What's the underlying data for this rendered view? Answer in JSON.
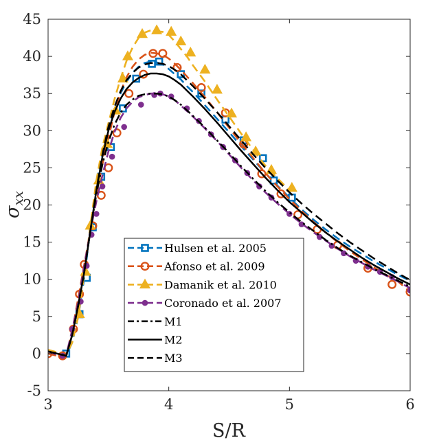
{
  "chart_data": {
    "type": "line",
    "title": "",
    "xlabel": "S/R",
    "ylabel": "σ",
    "ylabel_subscript": "xx",
    "xlim": [
      3,
      6
    ],
    "ylim": [
      -5,
      45
    ],
    "x_ticks": [
      3,
      4,
      5,
      6
    ],
    "y_ticks": [
      -5,
      0,
      5,
      10,
      15,
      20,
      25,
      30,
      35,
      40,
      45
    ],
    "grid": false,
    "legend_position": "bottom-center",
    "series": [
      {
        "name": "Hulsen et al. 2005",
        "color": "#0072BD",
        "marker": "square",
        "line_style": "dashed",
        "x": [
          3.0,
          3.05,
          3.1,
          3.15,
          3.2,
          3.25,
          3.3,
          3.35,
          3.4,
          3.45,
          3.5,
          3.55,
          3.6,
          3.65,
          3.7,
          3.75,
          3.8,
          3.85,
          3.9,
          3.95,
          4.0,
          4.05,
          4.1,
          4.15,
          4.2,
          4.3,
          4.4,
          4.5,
          4.6,
          4.7,
          4.8,
          4.9,
          5.0,
          5.1,
          5.2,
          5.3,
          5.4,
          5.5,
          5.6,
          5.7,
          5.8,
          5.9,
          6.0
        ],
        "y": [
          0.4,
          0.2,
          -0.1,
          -0.3,
          1.5,
          5.0,
          10.2,
          16.8,
          22.5,
          27.0,
          30.3,
          33.0,
          35.0,
          36.6,
          37.8,
          38.6,
          39.1,
          39.3,
          39.2,
          38.9,
          38.3,
          37.6,
          36.9,
          36.0,
          35.2,
          33.4,
          31.6,
          29.8,
          27.9,
          26.1,
          24.3,
          22.6,
          21.0,
          19.4,
          18.0,
          16.7,
          15.5,
          14.4,
          13.4,
          12.4,
          11.5,
          10.6,
          9.8
        ],
        "marker_x": [
          3.15,
          3.26,
          3.32,
          3.37,
          3.44,
          3.52,
          3.62,
          3.73,
          3.86,
          3.92,
          4.1,
          4.27,
          4.47,
          4.62,
          4.78,
          4.87,
          5.02
        ],
        "marker_y": [
          0.0,
          5.3,
          10.2,
          17.0,
          23.8,
          27.8,
          33.0,
          37.0,
          39.0,
          39.3,
          37.6,
          35.0,
          31.5,
          28.7,
          26.3,
          23.3,
          21.0
        ]
      },
      {
        "name": "Afonso et al. 2009",
        "color": "#D95319",
        "marker": "circle",
        "line_style": "dashed",
        "x": [
          3.0,
          3.05,
          3.1,
          3.15,
          3.2,
          3.25,
          3.3,
          3.35,
          3.4,
          3.45,
          3.5,
          3.55,
          3.6,
          3.65,
          3.7,
          3.75,
          3.8,
          3.85,
          3.9,
          3.95,
          4.0,
          4.05,
          4.1,
          4.15,
          4.2,
          4.3,
          4.4,
          4.5,
          4.6,
          4.7,
          4.8,
          4.9,
          5.0,
          5.1,
          5.2,
          5.3,
          5.4,
          5.5,
          5.6,
          5.7,
          5.8,
          5.9,
          6.0
        ],
        "y": [
          0.0,
          -0.2,
          -0.4,
          -0.2,
          3.0,
          7.5,
          12.0,
          16.5,
          21.5,
          25.5,
          29.0,
          32.5,
          35.2,
          37.2,
          38.6,
          39.6,
          40.2,
          40.5,
          40.4,
          40.2,
          39.7,
          39.0,
          38.2,
          37.3,
          36.4,
          34.5,
          32.5,
          30.4,
          28.3,
          26.3,
          24.3,
          22.5,
          20.8,
          19.2,
          17.7,
          16.3,
          15.0,
          13.8,
          12.7,
          11.6,
          10.6,
          9.7,
          8.3
        ],
        "marker_x": [
          3.0,
          3.12,
          3.21,
          3.26,
          3.3,
          3.37,
          3.44,
          3.5,
          3.57,
          3.67,
          3.79,
          3.87,
          3.95,
          4.07,
          4.27,
          4.47,
          4.62,
          4.77,
          4.93,
          5.07,
          5.23,
          5.4,
          5.65,
          5.85,
          6.0
        ],
        "marker_y": [
          0.0,
          -0.3,
          3.3,
          8.0,
          12.0,
          17.2,
          21.3,
          25.0,
          29.7,
          35.0,
          37.6,
          40.4,
          40.4,
          38.5,
          35.8,
          32.4,
          28.2,
          24.2,
          21.5,
          18.7,
          16.7,
          14.6,
          11.5,
          9.3,
          8.3
        ]
      },
      {
        "name": "Damanik et al. 2010",
        "color": "#EDB120",
        "marker": "triangle",
        "line_style": "dashed",
        "x": [
          3.0,
          3.05,
          3.1,
          3.15,
          3.2,
          3.25,
          3.3,
          3.35,
          3.4,
          3.45,
          3.5,
          3.55,
          3.6,
          3.65,
          3.7,
          3.75,
          3.8,
          3.85,
          3.9,
          3.95,
          4.0,
          4.05,
          4.1,
          4.15,
          4.2,
          4.3,
          4.4,
          4.5,
          4.6,
          4.7,
          4.8,
          4.9,
          5.0
        ],
        "y": [
          0.5,
          0.3,
          0.0,
          -0.2,
          1.5,
          5.0,
          10.8,
          17.2,
          23.3,
          27.8,
          31.0,
          34.2,
          37.0,
          39.4,
          41.2,
          42.5,
          43.2,
          43.5,
          43.4,
          43.3,
          42.9,
          42.0,
          41.0,
          40.0,
          38.8,
          36.6,
          34.2,
          31.9,
          29.6,
          27.4,
          25.3,
          23.6,
          22.0
        ],
        "marker_x": [
          3.26,
          3.31,
          3.35,
          3.42,
          3.49,
          3.56,
          3.62,
          3.66,
          3.78,
          3.9,
          4.02,
          4.1,
          4.18,
          4.3,
          4.4,
          4.52,
          4.64,
          4.72,
          4.85,
          5.02
        ],
        "marker_y": [
          5.3,
          11.0,
          17.2,
          23.3,
          28.2,
          32.7,
          37.0,
          40.0,
          43.0,
          43.5,
          43.3,
          42.0,
          40.5,
          38.2,
          35.5,
          32.3,
          29.1,
          27.2,
          24.7,
          22.3
        ]
      },
      {
        "name": "Coronado et al. 2007",
        "color": "#7E2F8E",
        "marker": "dot",
        "line_style": "dashed",
        "x": [
          3.0,
          3.05,
          3.1,
          3.15,
          3.2,
          3.25,
          3.3,
          3.35,
          3.4,
          3.45,
          3.5,
          3.55,
          3.6,
          3.65,
          3.7,
          3.75,
          3.8,
          3.85,
          3.9,
          3.95,
          4.0,
          4.05,
          4.1,
          4.2,
          4.3,
          4.4,
          4.5,
          4.6,
          4.7,
          4.8,
          4.9,
          5.0,
          5.1,
          5.2,
          5.3,
          5.4,
          5.5,
          5.6,
          5.7,
          5.8,
          5.9,
          6.0
        ],
        "y": [
          0.3,
          0.0,
          -0.4,
          -0.3,
          3.2,
          7.0,
          11.8,
          16.5,
          20.5,
          24.0,
          27.2,
          29.8,
          31.7,
          33.0,
          33.9,
          34.5,
          34.8,
          35.0,
          35.0,
          34.9,
          34.6,
          34.1,
          33.4,
          31.9,
          30.3,
          28.6,
          26.8,
          25.0,
          23.3,
          21.7,
          20.2,
          18.8,
          17.5,
          16.3,
          15.2,
          14.1,
          13.1,
          12.2,
          11.3,
          10.5,
          9.7,
          8.8
        ],
        "marker_x": [
          3.12,
          3.2,
          3.27,
          3.32,
          3.36,
          3.4,
          3.45,
          3.53,
          3.63,
          3.77,
          3.88,
          3.93,
          4.02,
          4.15,
          4.25,
          4.35,
          4.45,
          4.55,
          4.65,
          4.75,
          4.85,
          5.0,
          5.1,
          5.25,
          5.35,
          5.45,
          5.55,
          5.65,
          5.75,
          5.85,
          6.0
        ],
        "marker_y": [
          -0.3,
          3.3,
          7.0,
          11.8,
          16.0,
          18.8,
          22.5,
          26.5,
          30.5,
          33.5,
          34.8,
          35.0,
          34.6,
          33.0,
          31.3,
          29.5,
          27.8,
          26.0,
          24.3,
          22.5,
          21.0,
          18.8,
          17.4,
          15.7,
          14.5,
          13.5,
          12.5,
          11.7,
          11.0,
          10.3,
          8.5
        ]
      },
      {
        "name": "M1",
        "color": "#000000",
        "marker": "none",
        "line_style": "dashdot",
        "x": [
          3.0,
          3.05,
          3.1,
          3.15,
          3.2,
          3.25,
          3.3,
          3.35,
          3.4,
          3.45,
          3.5,
          3.55,
          3.6,
          3.65,
          3.7,
          3.75,
          3.8,
          3.85,
          3.9,
          3.95,
          4.0,
          4.05,
          4.1,
          4.2,
          4.3,
          4.4,
          4.5,
          4.6,
          4.7,
          4.8,
          4.9,
          5.0,
          5.1,
          5.2,
          5.3,
          5.4,
          5.5,
          5.6,
          5.7,
          5.8,
          5.9,
          6.0
        ],
        "y": [
          0.3,
          0.1,
          -0.1,
          -0.3,
          2.5,
          6.5,
          11.0,
          16.5,
          21.5,
          25.5,
          28.5,
          30.8,
          32.4,
          33.5,
          34.2,
          34.7,
          34.9,
          35.0,
          35.0,
          34.9,
          34.6,
          34.1,
          33.5,
          32.0,
          30.4,
          28.7,
          27.0,
          25.2,
          23.5,
          21.9,
          20.4,
          19.0,
          17.7,
          16.5,
          15.3,
          14.2,
          13.2,
          12.3,
          11.4,
          10.6,
          9.8,
          9.0
        ]
      },
      {
        "name": "M2",
        "color": "#000000",
        "marker": "none",
        "line_style": "solid",
        "x": [
          3.0,
          3.05,
          3.1,
          3.15,
          3.2,
          3.25,
          3.3,
          3.35,
          3.4,
          3.45,
          3.5,
          3.55,
          3.6,
          3.65,
          3.7,
          3.75,
          3.8,
          3.85,
          3.9,
          3.95,
          4.0,
          4.05,
          4.1,
          4.2,
          4.3,
          4.4,
          4.5,
          4.6,
          4.7,
          4.8,
          4.9,
          5.0,
          5.1,
          5.2,
          5.3,
          5.4,
          5.5,
          5.6,
          5.7,
          5.8,
          5.9,
          6.0
        ],
        "y": [
          0.3,
          0.1,
          -0.1,
          -0.3,
          2.5,
          6.5,
          11.0,
          16.5,
          22.0,
          26.5,
          30.0,
          32.5,
          34.3,
          35.6,
          36.5,
          37.1,
          37.5,
          37.7,
          37.7,
          37.6,
          37.3,
          36.8,
          36.2,
          34.6,
          32.9,
          31.1,
          29.2,
          27.3,
          25.5,
          23.7,
          22.0,
          20.4,
          19.0,
          17.6,
          16.3,
          15.1,
          14.0,
          12.9,
          11.9,
          11.0,
          10.1,
          9.3
        ]
      },
      {
        "name": "M3",
        "color": "#000000",
        "marker": "none",
        "line_style": "dashed",
        "x": [
          3.0,
          3.05,
          3.1,
          3.15,
          3.2,
          3.25,
          3.3,
          3.35,
          3.4,
          3.45,
          3.5,
          3.55,
          3.6,
          3.65,
          3.7,
          3.75,
          3.8,
          3.85,
          3.9,
          3.95,
          4.0,
          4.05,
          4.1,
          4.2,
          4.3,
          4.4,
          4.5,
          4.6,
          4.7,
          4.8,
          4.9,
          5.0,
          5.1,
          5.2,
          5.3,
          5.4,
          5.5,
          5.6,
          5.7,
          5.8,
          5.9,
          6.0
        ],
        "y": [
          0.3,
          0.1,
          -0.1,
          -0.3,
          2.5,
          6.5,
          11.0,
          16.5,
          22.0,
          26.8,
          30.5,
          33.2,
          35.3,
          36.8,
          37.8,
          38.5,
          38.9,
          39.1,
          39.1,
          39.0,
          38.7,
          38.2,
          37.6,
          36.0,
          34.3,
          32.5,
          30.6,
          28.7,
          26.8,
          25.0,
          23.3,
          21.7,
          20.2,
          18.8,
          17.5,
          16.2,
          15.0,
          13.9,
          12.8,
          11.8,
          10.8,
          9.9
        ]
      }
    ]
  }
}
